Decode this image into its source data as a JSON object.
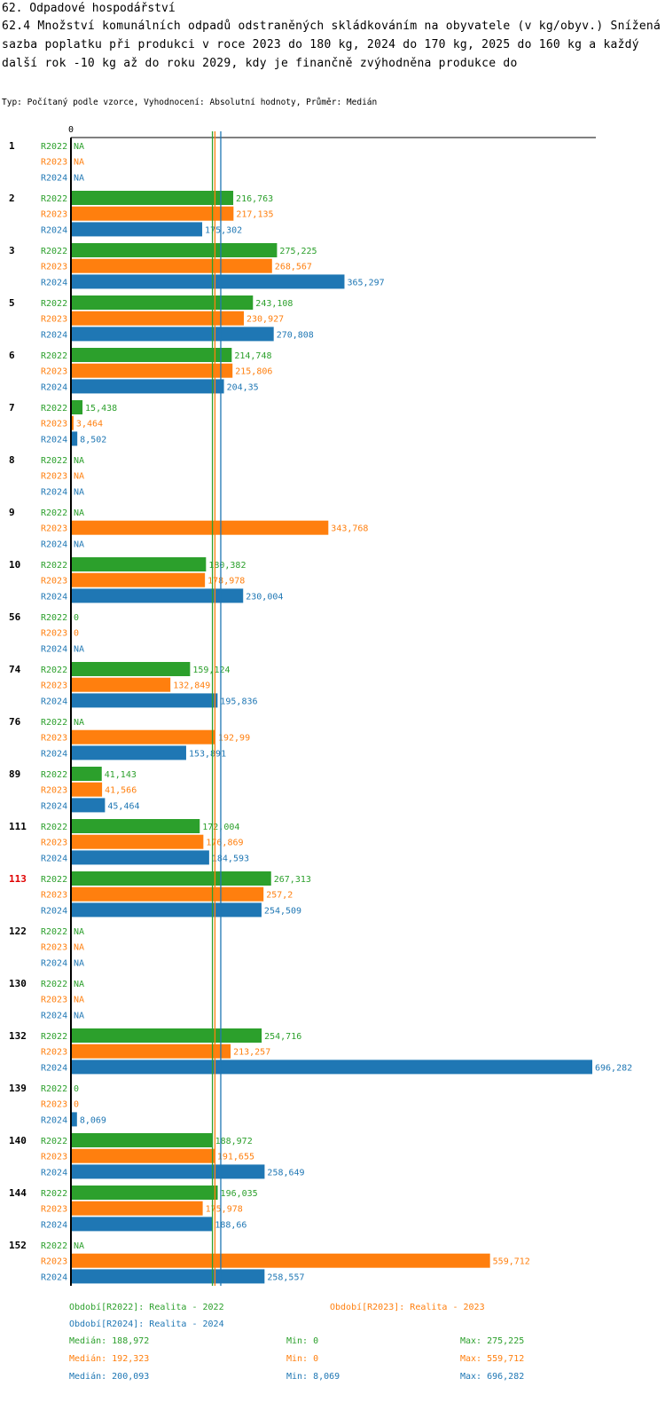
{
  "header": {
    "section_title": "62. Odpadové hospodářství",
    "indicator_title": "62.4 Množství komunálních odpadů odstraněných skládkováním na obyvatele (v kg/obyv.) Snížená sazba poplatku při produkci v roce 2023 do 180 kg, 2024 do 170 kg, 2025 do 160 kg a každý další rok -10 kg až do roku 2029, kdy je finančně zvýhodněna produkce do",
    "type_line": "Typ: Počítaný podle vzorce, Vyhodnocení: Absolutní hodnoty, Průměr: Medián"
  },
  "colors": {
    "R2022": "#2ca02c",
    "R2023": "#ff7f0e",
    "R2024": "#1f77b4",
    "highlight": "#e00000",
    "axis": "#000000"
  },
  "chart_data": {
    "type": "bar",
    "orientation": "horizontal",
    "x_axis_label": "0",
    "xlim": [
      0,
      696.282
    ],
    "series_names": [
      "R2022",
      "R2023",
      "R2024"
    ],
    "highlighted_category": "113",
    "groups": [
      {
        "id": "1",
        "values": [
          null,
          null,
          null
        ],
        "labels": [
          "NA",
          "NA",
          "NA"
        ]
      },
      {
        "id": "2",
        "values": [
          216.763,
          217.135,
          175.302
        ],
        "labels": [
          "216,763",
          "217,135",
          "175,302"
        ]
      },
      {
        "id": "3",
        "values": [
          275.225,
          268.567,
          365.297
        ],
        "labels": [
          "275,225",
          "268,567",
          "365,297"
        ]
      },
      {
        "id": "5",
        "values": [
          243.108,
          230.927,
          270.808
        ],
        "labels": [
          "243,108",
          "230,927",
          "270,808"
        ]
      },
      {
        "id": "6",
        "values": [
          214.748,
          215.806,
          204.35
        ],
        "labels": [
          "214,748",
          "215,806",
          "204,35"
        ]
      },
      {
        "id": "7",
        "values": [
          15.438,
          3.464,
          8.502
        ],
        "labels": [
          "15,438",
          "3,464",
          "8,502"
        ]
      },
      {
        "id": "8",
        "values": [
          null,
          null,
          null
        ],
        "labels": [
          "NA",
          "NA",
          "NA"
        ]
      },
      {
        "id": "9",
        "values": [
          null,
          343.768,
          null
        ],
        "labels": [
          "NA",
          "343,768",
          "NA"
        ]
      },
      {
        "id": "10",
        "values": [
          180.382,
          178.978,
          230.004
        ],
        "labels": [
          "180,382",
          "178,978",
          "230,004"
        ]
      },
      {
        "id": "56",
        "values": [
          0,
          0,
          null
        ],
        "labels": [
          "0",
          "0",
          "NA"
        ]
      },
      {
        "id": "74",
        "values": [
          159.124,
          132.849,
          195.836
        ],
        "labels": [
          "159,124",
          "132,849",
          "195,836"
        ]
      },
      {
        "id": "76",
        "values": [
          null,
          192.99,
          153.891
        ],
        "labels": [
          "NA",
          "192,99",
          "153,891"
        ]
      },
      {
        "id": "89",
        "values": [
          41.143,
          41.566,
          45.464
        ],
        "labels": [
          "41,143",
          "41,566",
          "45,464"
        ]
      },
      {
        "id": "111",
        "values": [
          172.004,
          176.869,
          184.593
        ],
        "labels": [
          "172,004",
          "176,869",
          "184,593"
        ]
      },
      {
        "id": "113",
        "values": [
          267.313,
          257.2,
          254.509
        ],
        "labels": [
          "267,313",
          "257,2",
          "254,509"
        ]
      },
      {
        "id": "122",
        "values": [
          null,
          null,
          null
        ],
        "labels": [
          "NA",
          "NA",
          "NA"
        ]
      },
      {
        "id": "130",
        "values": [
          null,
          null,
          null
        ],
        "labels": [
          "NA",
          "NA",
          "NA"
        ]
      },
      {
        "id": "132",
        "values": [
          254.716,
          213.257,
          696.282
        ],
        "labels": [
          "254,716",
          "213,257",
          "696,282"
        ]
      },
      {
        "id": "139",
        "values": [
          0,
          0,
          8.069
        ],
        "labels": [
          "0",
          "0",
          "8,069"
        ]
      },
      {
        "id": "140",
        "values": [
          188.972,
          191.655,
          258.649
        ],
        "labels": [
          "188,972",
          "191,655",
          "258,649"
        ]
      },
      {
        "id": "144",
        "values": [
          196.035,
          175.978,
          188.66
        ],
        "labels": [
          "196,035",
          "175,978",
          "188,66"
        ]
      },
      {
        "id": "152",
        "values": [
          null,
          559.712,
          258.557
        ],
        "labels": [
          "NA",
          "559,712",
          "258,557"
        ]
      }
    ],
    "median_lines": [
      188.972,
      192.323,
      200.093
    ],
    "legend": [
      {
        "series": "R2022",
        "label": "Období[R2022]: Realita - 2022"
      },
      {
        "series": "R2023",
        "label": "Období[R2023]: Realita - 2023"
      },
      {
        "series": "R2024",
        "label": "Období[R2024]: Realita - 2024"
      }
    ],
    "stats": [
      {
        "series": "R2022",
        "median": "Medián: 188,972",
        "min": "Min: 0",
        "max": "Max: 275,225"
      },
      {
        "series": "R2023",
        "median": "Medián: 192,323",
        "min": "Min: 0",
        "max": "Max: 559,712"
      },
      {
        "series": "R2024",
        "median": "Medián: 200,093",
        "min": "Min: 8,069",
        "max": "Max: 696,282"
      }
    ]
  }
}
